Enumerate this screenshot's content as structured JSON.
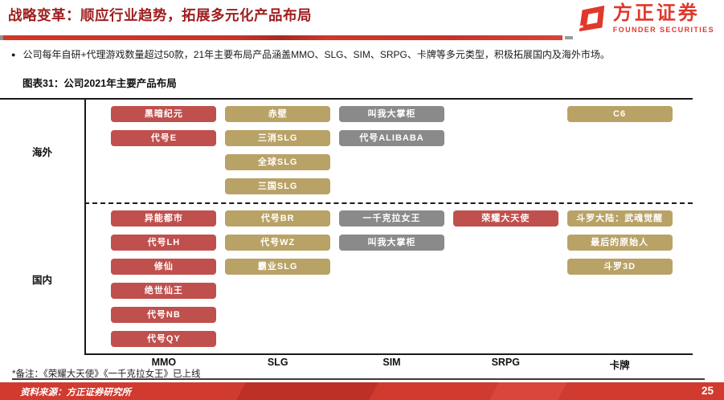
{
  "header": {
    "title": "战略变革：顺应行业趋势，拓展多元化产品布局"
  },
  "logo": {
    "cn": "方正证券",
    "en": "FOUNDER SECURITIES"
  },
  "bullet": {
    "marker": "●",
    "text": "公司每年自研+代理游戏数量超过50款，21年主要布局产品涵盖MMO、SLG、SIM、SRPG、卡牌等多元类型，积极拓展国内及海外市场。"
  },
  "figure": {
    "title": "图表31：公司2021年主要产品布局"
  },
  "chart_data": {
    "type": "table",
    "title": "公司2021年主要产品布局",
    "columns": [
      {
        "key": "MMO",
        "label": "MMO"
      },
      {
        "key": "SLG",
        "label": "SLG"
      },
      {
        "key": "SIM",
        "label": "SIM"
      },
      {
        "key": "SRPG",
        "label": "SRPG"
      },
      {
        "key": "card",
        "label": "卡牌"
      }
    ],
    "sections": [
      {
        "id": "overseas",
        "label": "海外",
        "products": {
          "MMO": [
            {
              "label": "黑暗纪元",
              "color": "red"
            },
            {
              "label": "代号E",
              "color": "red"
            }
          ],
          "SLG": [
            {
              "label": "赤壁",
              "color": "gold"
            },
            {
              "label": "三消SLG",
              "color": "gold"
            },
            {
              "label": "全球SLG",
              "color": "gold"
            },
            {
              "label": "三国SLG",
              "color": "gold"
            }
          ],
          "SIM": [
            {
              "label": "叫我大掌柜",
              "color": "gray"
            },
            {
              "label": "代号ALIBABA",
              "color": "gray"
            }
          ],
          "SRPG": [],
          "card": [
            {
              "label": "C6",
              "color": "gold"
            }
          ]
        }
      },
      {
        "id": "domestic",
        "label": "国内",
        "products": {
          "MMO": [
            {
              "label": "异能都市",
              "color": "red"
            },
            {
              "label": "代号LH",
              "color": "red"
            },
            {
              "label": "修仙",
              "color": "red"
            },
            {
              "label": "绝世仙王",
              "color": "red"
            },
            {
              "label": "代号NB",
              "color": "red"
            },
            {
              "label": "代号QY",
              "color": "red"
            }
          ],
          "SLG": [
            {
              "label": "代号BR",
              "color": "gold"
            },
            {
              "label": "代号WZ",
              "color": "gold"
            },
            {
              "label": "霸业SLG",
              "color": "gold"
            }
          ],
          "SIM": [
            {
              "label": "一千克拉女王",
              "color": "gray"
            },
            {
              "label": "叫我大掌柜",
              "color": "gray"
            }
          ],
          "SRPG": [
            {
              "label": "荣耀大天使",
              "color": "red"
            }
          ],
          "card": [
            {
              "label": "斗罗大陆：武魂觉醒",
              "color": "gold"
            },
            {
              "label": "最后的原始人",
              "color": "gold"
            },
            {
              "label": "斗罗3D",
              "color": "gold"
            }
          ]
        }
      }
    ]
  },
  "footer": {
    "footnote": "*备注：《荣耀大天使》《一千克拉女王》已上线",
    "source": "资料来源：方正证券研究所",
    "page_number": "25"
  },
  "colors": {
    "red_box": "#C0504D",
    "gold_box": "#B9A266",
    "gray_box": "#8A8A8A",
    "brand_red": "#E0382C",
    "footer_red": "#D13A2F",
    "title_red": "#9E1E1E"
  }
}
